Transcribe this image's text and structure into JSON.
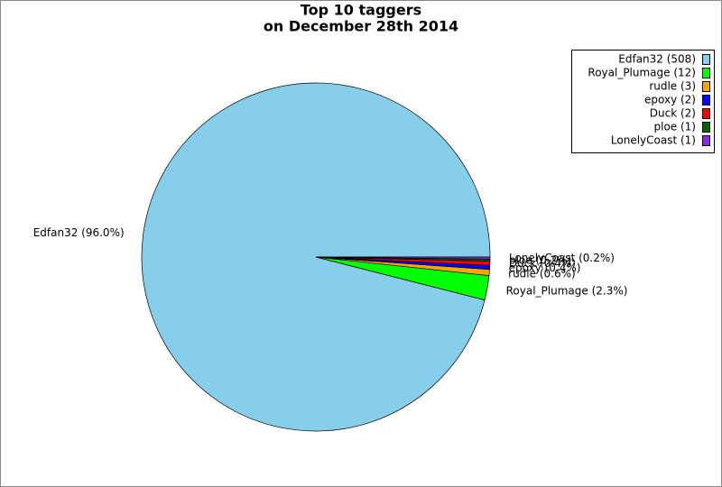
{
  "chart_data": {
    "type": "pie",
    "title": [
      "Top 10 taggers",
      "on December 28th 2014"
    ],
    "categories": [
      "Edfan32",
      "Royal_Plumage",
      "rudle",
      "epoxy",
      "Duck",
      "ploe",
      "LonelyCoast"
    ],
    "values": [
      508,
      12,
      3,
      2,
      2,
      1,
      1
    ],
    "value_labels": [
      "Edfan32 (96.0%)",
      "Royal_Plumage (2.3%)",
      "rudle (0.6%)",
      "epoxy (0.4%)",
      "Duck (0.4%)",
      "ploe (0.2%)",
      "LonelyCoast (0.2%)"
    ],
    "legend_labels": [
      "Edfan32 (508)",
      "Royal_Plumage (12)",
      "rudle (3)",
      "epoxy (2)",
      "Duck (2)",
      "ploe (1)",
      "LonelyCoast (1)"
    ],
    "colors": [
      "#87ceeb",
      "#00ff00",
      "#ffa500",
      "#0000ff",
      "#ff0000",
      "#006400",
      "#8a2be2"
    ],
    "legend": "upper right"
  }
}
